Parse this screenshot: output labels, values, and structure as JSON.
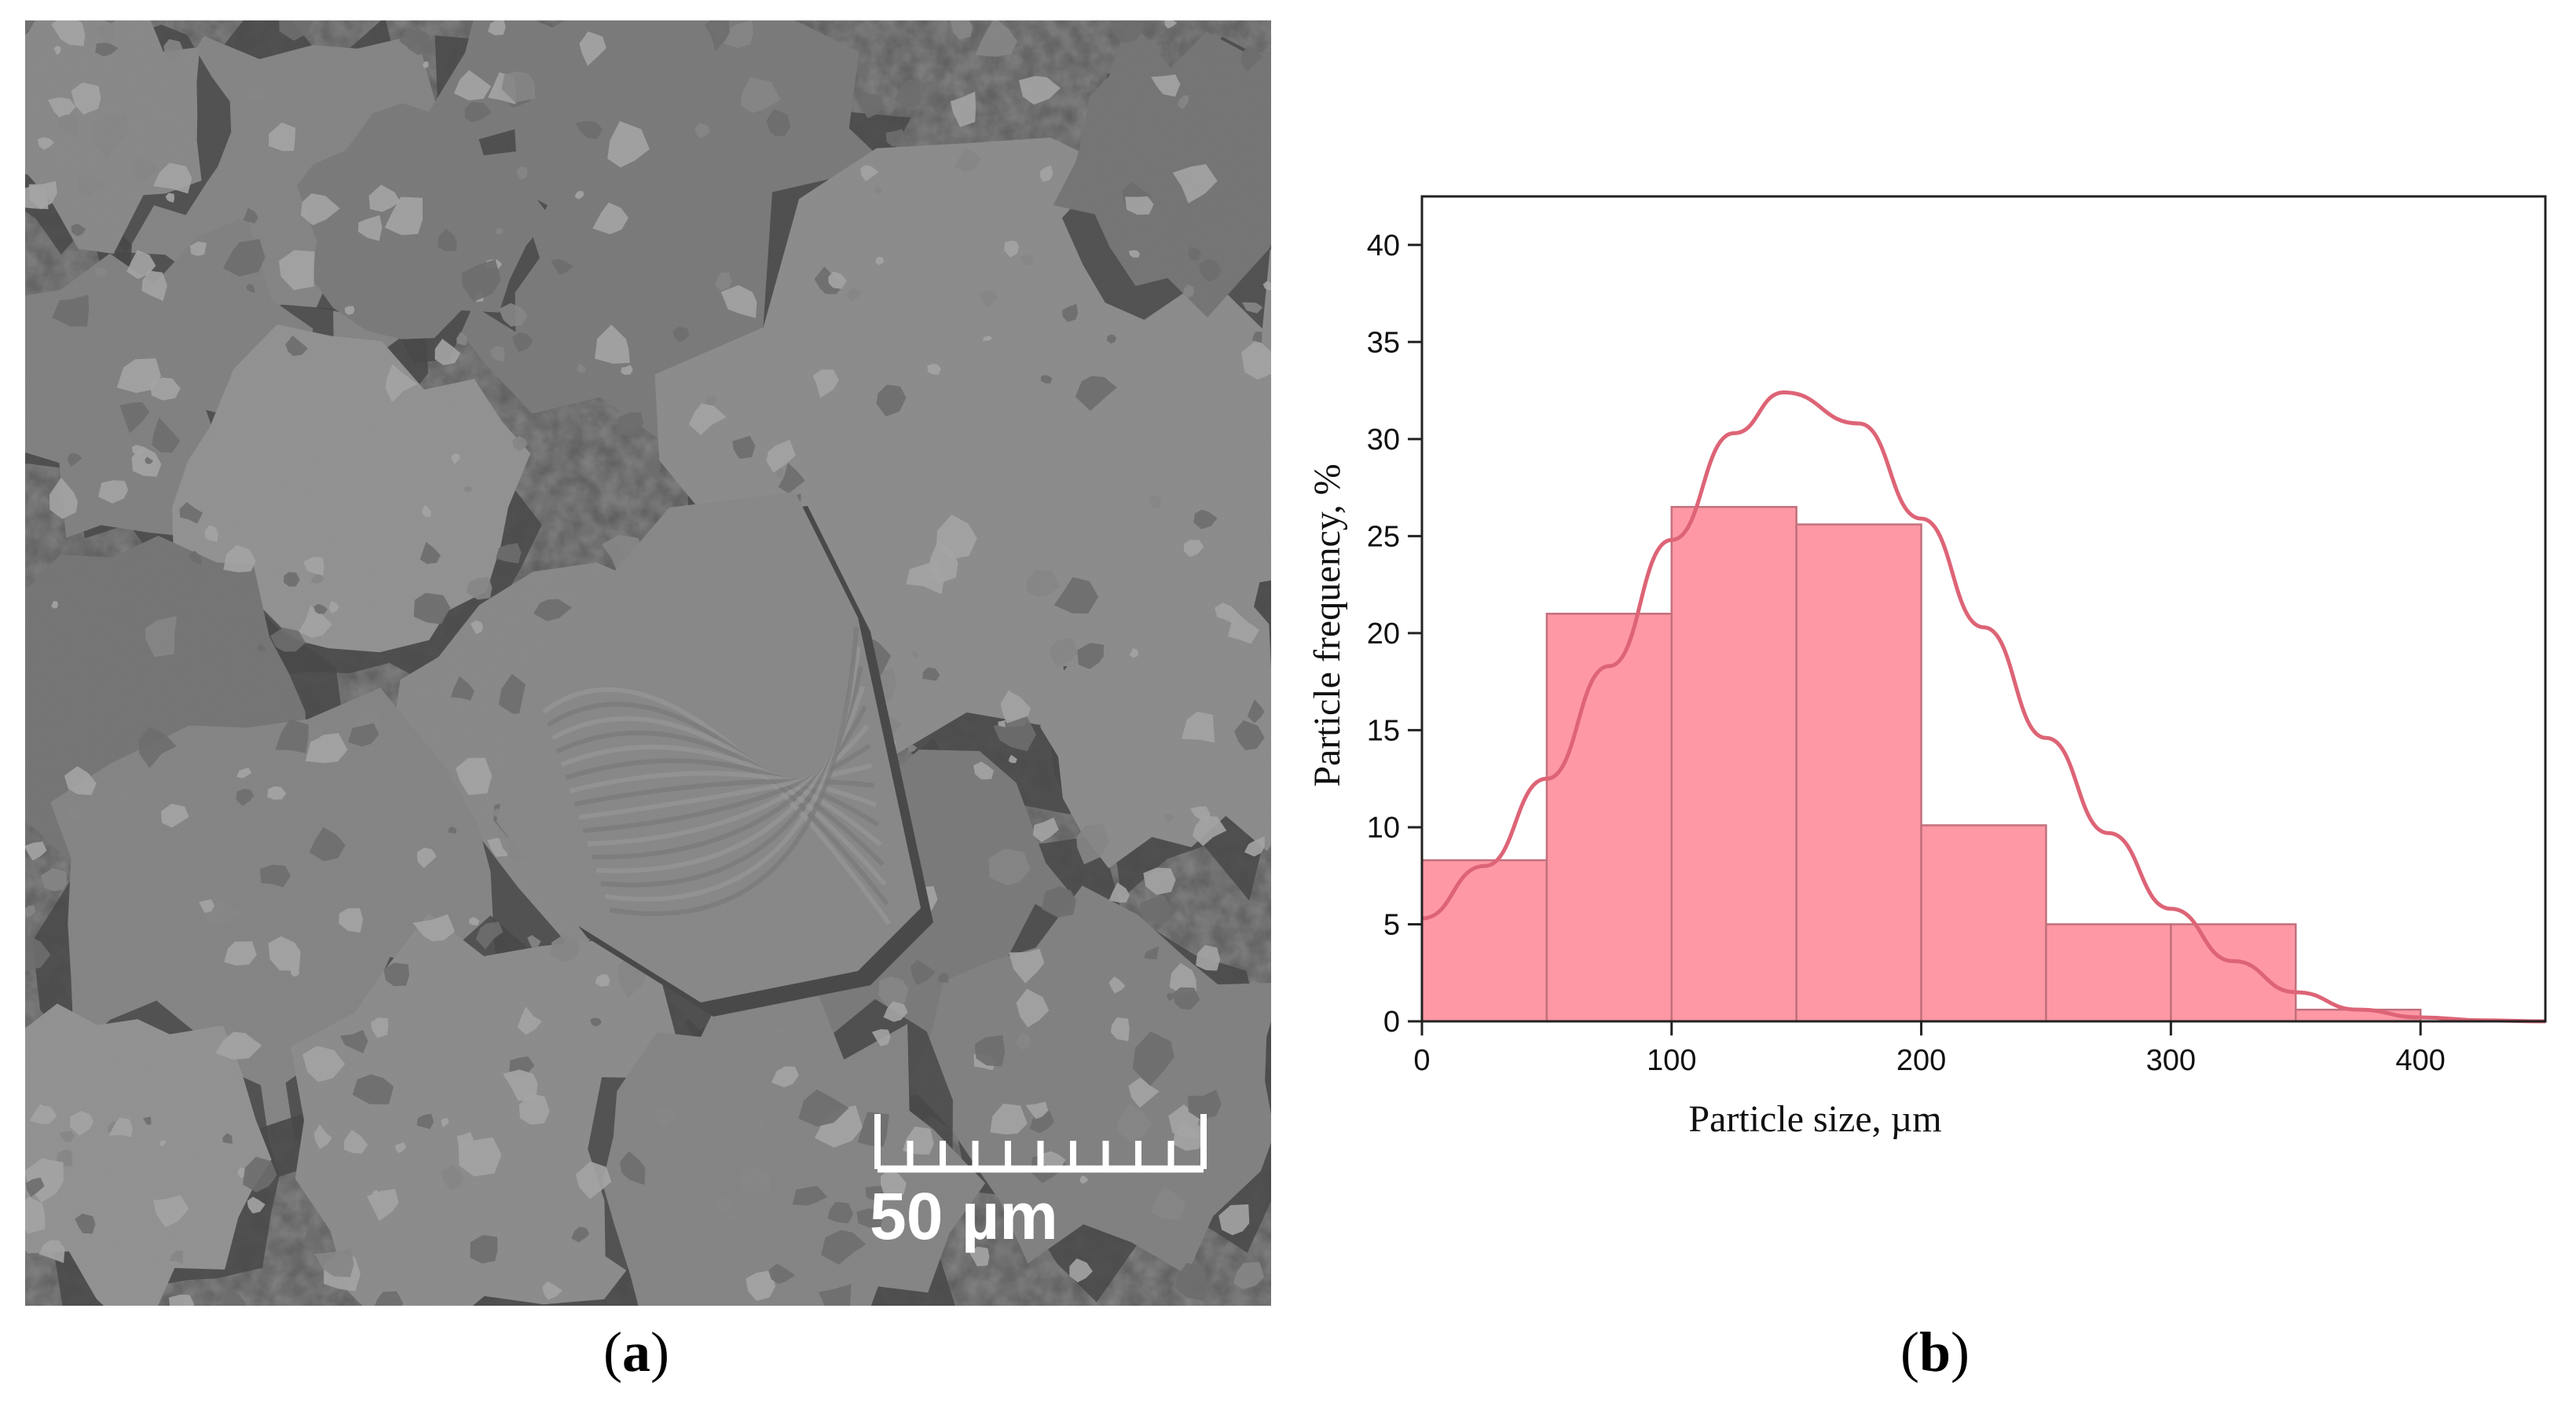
{
  "panels": {
    "a": {
      "open": "(",
      "letter": "a",
      "close": ")"
    },
    "b": {
      "open": "(",
      "letter": "b",
      "close": ")"
    }
  },
  "sem_image": {
    "scale_bar_label": "50 µm",
    "scale_bar_minor_divisions": 10,
    "colors": {
      "base": "#7f7f7f",
      "shadow": "#3a3a3a",
      "highlight": "#b4b4b4"
    }
  },
  "chart_data": {
    "type": "bar",
    "title": "",
    "xlabel": "Particle size, µm",
    "ylabel": "Particle frequency, %",
    "bin_edges": [
      0,
      50,
      100,
      150,
      200,
      250,
      300,
      350,
      400
    ],
    "values": [
      8.3,
      21.0,
      26.5,
      25.6,
      10.1,
      5.0,
      5.0,
      0.6
    ],
    "xlim": [
      0,
      450
    ],
    "ylim": [
      0,
      42.5
    ],
    "xticks": [
      0,
      100,
      200,
      300,
      400
    ],
    "yticks": [
      0,
      5,
      10,
      15,
      20,
      25,
      30,
      35,
      40
    ],
    "fit_curve": {
      "type": "normal",
      "x": [
        0,
        25,
        50,
        75,
        100,
        125,
        145,
        175,
        200,
        225,
        250,
        275,
        300,
        325,
        350,
        375,
        400,
        425,
        450
      ],
      "y": [
        5.3,
        8.0,
        12.5,
        18.3,
        24.8,
        30.3,
        32.4,
        30.8,
        25.9,
        20.3,
        14.6,
        9.7,
        5.8,
        3.1,
        1.5,
        0.6,
        0.2,
        0.05,
        0.0
      ]
    },
    "grid": false,
    "colors": {
      "bar_fill": "#ff98a5",
      "bar_edge": "#c2707c",
      "curve": "#dd6476",
      "axis": "#222222"
    }
  }
}
